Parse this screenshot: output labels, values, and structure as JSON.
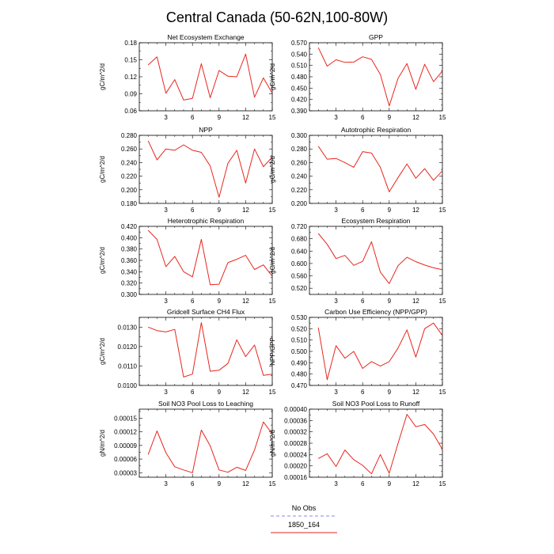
{
  "title": "Central Canada (50-62N,100-80W)",
  "legend": [
    {
      "label": "No Obs",
      "color": "#8a8af0",
      "dash": true
    },
    {
      "label": "1850_164",
      "color": "#e8261e",
      "dash": false
    }
  ],
  "chart_data": [
    {
      "type": "line",
      "title": "Net Ecosystem Exchange",
      "ylabel": "gC/m^2/d",
      "xlim": [
        0,
        15
      ],
      "xticks": [
        3,
        6,
        9,
        12,
        15
      ],
      "ylim": [
        0.06,
        0.18
      ],
      "yticks": [
        0.06,
        0.09,
        0.12,
        0.15,
        0.18
      ],
      "ytick_labels": [
        "0.06",
        "0.09",
        "0.12",
        "0.15",
        "0.18"
      ],
      "x": [
        1,
        2,
        3,
        4,
        5,
        6,
        7,
        8,
        9,
        10,
        11,
        12,
        13,
        14,
        15
      ],
      "series": [
        {
          "name": "1850_164",
          "color": "#e8261e",
          "values": [
            0.141,
            0.155,
            0.091,
            0.115,
            0.079,
            0.082,
            0.143,
            0.083,
            0.131,
            0.121,
            0.12,
            0.16,
            0.084,
            0.118,
            0.091
          ]
        }
      ]
    },
    {
      "type": "line",
      "title": "GPP",
      "ylabel": "gC/m^2/d",
      "xlim": [
        0,
        15
      ],
      "xticks": [
        3,
        6,
        9,
        12,
        15
      ],
      "ylim": [
        0.39,
        0.57
      ],
      "yticks": [
        0.39,
        0.42,
        0.45,
        0.48,
        0.51,
        0.54,
        0.57
      ],
      "ytick_labels": [
        "0.390",
        "0.420",
        "0.450",
        "0.480",
        "0.510",
        "0.540",
        "0.570"
      ],
      "x": [
        1,
        2,
        3,
        4,
        5,
        6,
        7,
        8,
        9,
        10,
        11,
        12,
        13,
        14,
        15
      ],
      "series": [
        {
          "name": "1850_164",
          "color": "#e8261e",
          "values": [
            0.557,
            0.508,
            0.525,
            0.518,
            0.519,
            0.533,
            0.526,
            0.486,
            0.403,
            0.476,
            0.515,
            0.447,
            0.513,
            0.467,
            0.495
          ]
        }
      ]
    },
    {
      "type": "line",
      "title": "NPP",
      "ylabel": "gC/m^2/d",
      "xlim": [
        0,
        15
      ],
      "xticks": [
        3,
        6,
        9,
        12,
        15
      ],
      "ylim": [
        0.18,
        0.28
      ],
      "yticks": [
        0.18,
        0.2,
        0.22,
        0.24,
        0.26,
        0.28
      ],
      "ytick_labels": [
        "0.180",
        "0.200",
        "0.220",
        "0.240",
        "0.260",
        "0.280"
      ],
      "x": [
        1,
        2,
        3,
        4,
        5,
        6,
        7,
        8,
        9,
        10,
        11,
        12,
        13,
        14,
        15
      ],
      "series": [
        {
          "name": "1850_164",
          "color": "#e8261e",
          "values": [
            0.272,
            0.244,
            0.26,
            0.258,
            0.266,
            0.258,
            0.255,
            0.235,
            0.189,
            0.239,
            0.258,
            0.21,
            0.26,
            0.234,
            0.248
          ]
        }
      ]
    },
    {
      "type": "line",
      "title": "Autotrophic Respiration",
      "ylabel": "gC/m^2/d",
      "xlim": [
        0,
        15
      ],
      "xticks": [
        3,
        6,
        9,
        12,
        15
      ],
      "ylim": [
        0.2,
        0.3
      ],
      "yticks": [
        0.2,
        0.22,
        0.24,
        0.26,
        0.28,
        0.3
      ],
      "ytick_labels": [
        "0.200",
        "0.220",
        "0.240",
        "0.260",
        "0.280",
        "0.300"
      ],
      "x": [
        1,
        2,
        3,
        4,
        5,
        6,
        7,
        8,
        9,
        10,
        11,
        12,
        13,
        14,
        15
      ],
      "series": [
        {
          "name": "1850_164",
          "color": "#e8261e",
          "values": [
            0.284,
            0.265,
            0.266,
            0.26,
            0.253,
            0.276,
            0.274,
            0.253,
            0.217,
            0.238,
            0.258,
            0.237,
            0.251,
            0.234,
            0.248
          ]
        }
      ]
    },
    {
      "type": "line",
      "title": "Heterotrophic Respiration",
      "ylabel": "gC/m^2/d",
      "xlim": [
        0,
        15
      ],
      "xticks": [
        3,
        6,
        9,
        12,
        15
      ],
      "ylim": [
        0.3,
        0.42
      ],
      "yticks": [
        0.3,
        0.32,
        0.34,
        0.36,
        0.38,
        0.4,
        0.42
      ],
      "ytick_labels": [
        "0.300",
        "0.320",
        "0.340",
        "0.360",
        "0.380",
        "0.400",
        "0.420"
      ],
      "x": [
        1,
        2,
        3,
        4,
        5,
        6,
        7,
        8,
        9,
        10,
        11,
        12,
        13,
        14,
        15
      ],
      "series": [
        {
          "name": "1850_164",
          "color": "#e8261e",
          "values": [
            0.413,
            0.397,
            0.349,
            0.367,
            0.34,
            0.331,
            0.397,
            0.317,
            0.318,
            0.356,
            0.362,
            0.369,
            0.344,
            0.352,
            0.332
          ]
        }
      ]
    },
    {
      "type": "line",
      "title": "Ecosystem Respiration",
      "ylabel": "gC/m^2/d",
      "xlim": [
        0,
        15
      ],
      "xticks": [
        3,
        6,
        9,
        12,
        15
      ],
      "ylim": [
        0.5,
        0.72
      ],
      "yticks": [
        0.52,
        0.56,
        0.6,
        0.64,
        0.68,
        0.72
      ],
      "ytick_labels": [
        "0.520",
        "0.560",
        "0.600",
        "0.640",
        "0.680",
        "0.720"
      ],
      "x": [
        1,
        2,
        3,
        4,
        5,
        6,
        7,
        8,
        9,
        10,
        11,
        12,
        13,
        14,
        15
      ],
      "series": [
        {
          "name": "1850_164",
          "color": "#e8261e",
          "values": [
            0.697,
            0.662,
            0.616,
            0.626,
            0.594,
            0.607,
            0.67,
            0.572,
            0.535,
            0.593,
            0.62,
            0.606,
            0.595,
            0.586,
            0.58
          ]
        }
      ]
    },
    {
      "type": "line",
      "title": "Gridcell Surface CH4 Flux",
      "ylabel": "gC/m^2/d",
      "xlim": [
        0,
        15
      ],
      "xticks": [
        3,
        6,
        9,
        12,
        15
      ],
      "ylim": [
        0.01,
        0.0135
      ],
      "yticks": [
        0.01,
        0.011,
        0.012,
        0.013
      ],
      "ytick_labels": [
        "0.0100",
        "0.0110",
        "0.0120",
        "0.0130"
      ],
      "x": [
        1,
        2,
        3,
        4,
        5,
        6,
        7,
        8,
        9,
        10,
        11,
        12,
        13,
        14,
        15
      ],
      "series": [
        {
          "name": "1850_164",
          "color": "#e8261e",
          "values": [
            0.013,
            0.01282,
            0.01275,
            0.01288,
            0.01043,
            0.01058,
            0.01323,
            0.01073,
            0.01078,
            0.01113,
            0.01235,
            0.01148,
            0.01208,
            0.01052,
            0.01058
          ]
        }
      ]
    },
    {
      "type": "line",
      "title": "Carbon Use Efficiency (NPP/GPP)",
      "ylabel": "NPP/GPP",
      "xlim": [
        0,
        15
      ],
      "xticks": [
        3,
        6,
        9,
        12,
        15
      ],
      "ylim": [
        0.47,
        0.53
      ],
      "yticks": [
        0.47,
        0.48,
        0.49,
        0.5,
        0.51,
        0.52,
        0.53
      ],
      "ytick_labels": [
        "0.470",
        "0.480",
        "0.490",
        "0.500",
        "0.510",
        "0.520",
        "0.530"
      ],
      "x": [
        1,
        2,
        3,
        4,
        5,
        6,
        7,
        8,
        9,
        10,
        11,
        12,
        13,
        14,
        15
      ],
      "series": [
        {
          "name": "1850_164",
          "color": "#e8261e",
          "values": [
            0.521,
            0.475,
            0.505,
            0.494,
            0.5,
            0.485,
            0.491,
            0.487,
            0.491,
            0.503,
            0.519,
            0.495,
            0.52,
            0.525,
            0.514
          ]
        }
      ]
    },
    {
      "type": "line",
      "title": "Soil NO3 Pool Loss to Leaching",
      "ylabel": "gN/m^2/d",
      "xlim": [
        0,
        15
      ],
      "xticks": [
        3,
        6,
        9,
        12,
        15
      ],
      "ylim": [
        2e-05,
        0.00017
      ],
      "yticks": [
        3e-05,
        6e-05,
        9e-05,
        0.00012,
        0.00015
      ],
      "ytick_labels": [
        "0.00003",
        "0.00006",
        "0.00009",
        "0.00012",
        "0.00015"
      ],
      "x": [
        1,
        2,
        3,
        4,
        5,
        6,
        7,
        8,
        9,
        10,
        11,
        12,
        13,
        14,
        15
      ],
      "series": [
        {
          "name": "1850_164",
          "color": "#e8261e",
          "values": [
            7e-05,
            0.000122,
            7.4e-05,
            4.3e-05,
            3.6e-05,
            3e-05,
            0.000124,
            8.9e-05,
            3.6e-05,
            3.1e-05,
            4.2e-05,
            3.5e-05,
            8e-05,
            0.000142,
            0.000115
          ]
        }
      ]
    },
    {
      "type": "line",
      "title": "Soil NO3 Pool Loss to Runoff",
      "ylabel": "gN/m^2/d",
      "xlim": [
        0,
        15
      ],
      "xticks": [
        3,
        6,
        9,
        12,
        15
      ],
      "ylim": [
        0.00016,
        0.0004
      ],
      "yticks": [
        0.00016,
        0.0002,
        0.00024,
        0.00028,
        0.00032,
        0.00036,
        0.0004
      ],
      "ytick_labels": [
        "0.00016",
        "0.00020",
        "0.00024",
        "0.00028",
        "0.00032",
        "0.00036",
        "0.00040"
      ],
      "x": [
        1,
        2,
        3,
        4,
        5,
        6,
        7,
        8,
        9,
        10,
        11,
        12,
        13,
        14,
        15
      ],
      "series": [
        {
          "name": "1850_164",
          "color": "#e8261e",
          "values": [
            0.000226,
            0.000243,
            0.000198,
            0.000256,
            0.000222,
            0.000202,
            0.000172,
            0.00024,
            0.000174,
            0.00028,
            0.000382,
            0.000338,
            0.000346,
            0.000312,
            0.000258
          ]
        }
      ]
    }
  ]
}
